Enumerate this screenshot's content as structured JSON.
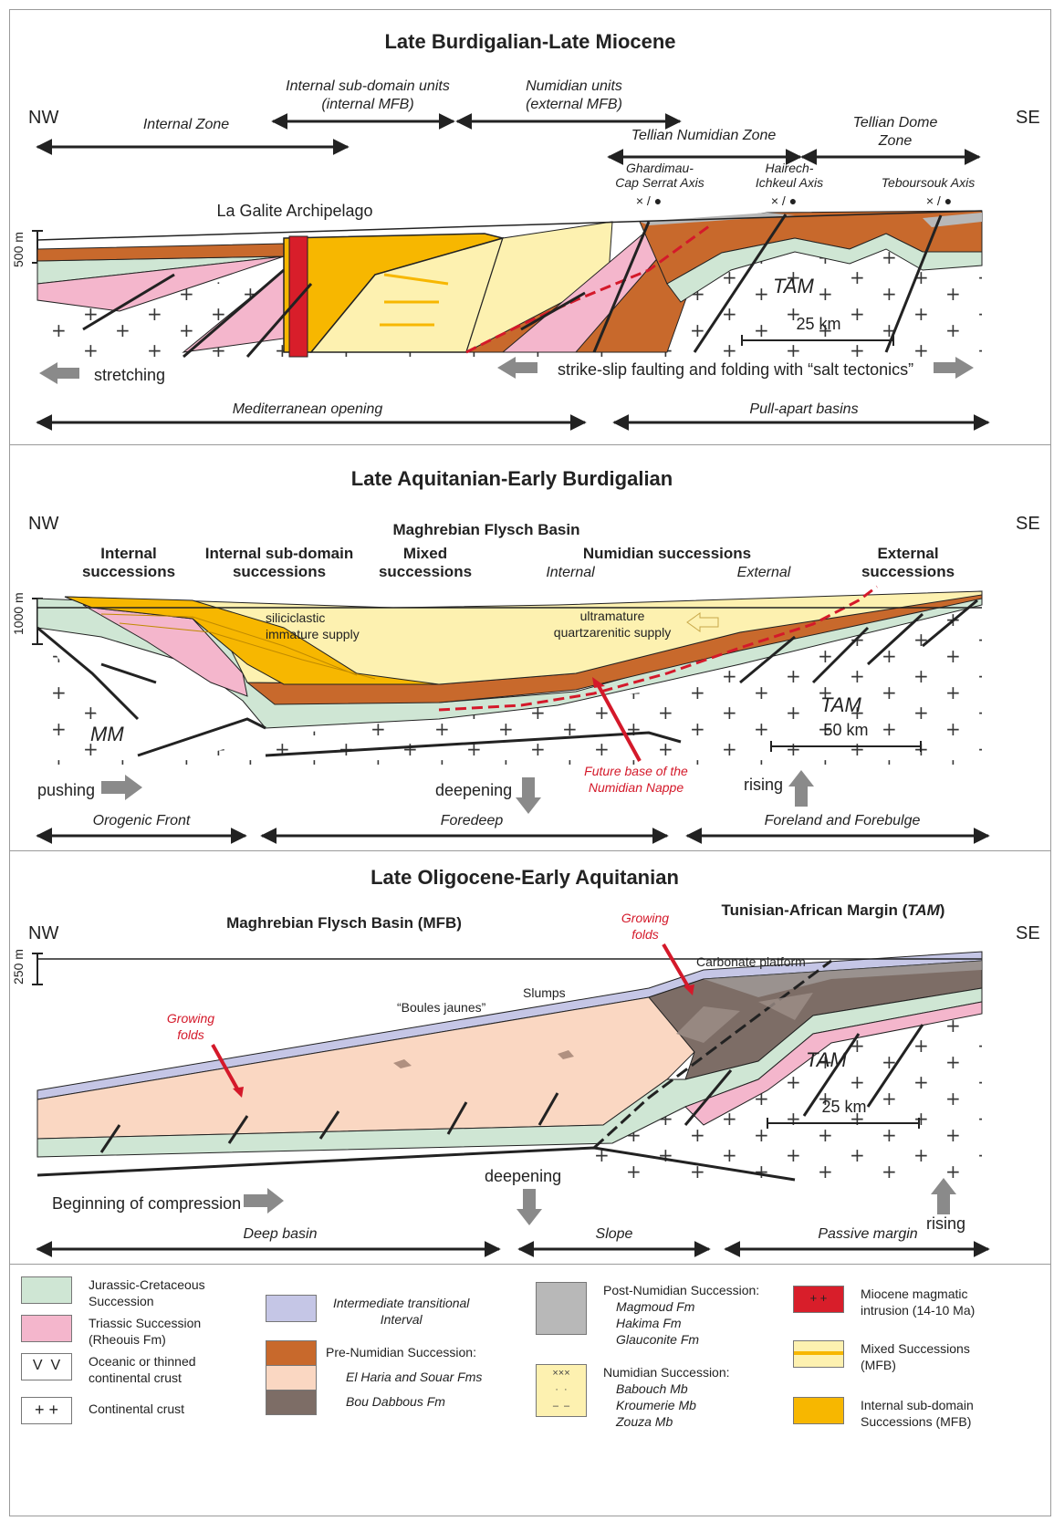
{
  "panel1": {
    "title": "Late Burdigalian-Late Miocene",
    "nw": "NW",
    "se": "SE",
    "internal_zone": "Internal Zone",
    "internal_sub_domain_1": "Internal sub-domain units",
    "internal_sub_domain_2": "(internal MFB)",
    "numidian_units_1": "Numidian units",
    "numidian_units_2": "(external MFB)",
    "tellian_numidian_zone": "Tellian Numidian Zone",
    "tellian_dome_1": "Tellian Dome",
    "tellian_dome_2": "Zone",
    "ghardimau_1": "Ghardimau-",
    "ghardimau_2": "Cap Serrat Axis",
    "hairech_1": "Hairech-",
    "hairech_2": "Ichkeul Axis",
    "teboursouk": "Teboursouk Axis",
    "axis_symbol": "× / ●",
    "la_galite": "La Galite Archipelago",
    "scale_height": "500 m",
    "tam": "TAM",
    "scale_length": "25 km",
    "stretching": "stretching",
    "strike_slip": "strike-slip faulting and folding with “salt tectonics”",
    "mediterranean_opening": "Mediterranean opening",
    "pull_apart": "Pull-apart basins"
  },
  "panel2": {
    "title": "Late Aquitanian-Early Burdigalian",
    "nw": "NW",
    "se": "SE",
    "mfb": "Maghrebian Flysch Basin",
    "internal_succ_1": "Internal",
    "internal_succ_2": "successions",
    "isd_succ_1": "Internal sub-domain",
    "isd_succ_2": "successions",
    "mixed_succ_1": "Mixed",
    "mixed_succ_2": "successions",
    "numidian_succ": "Numidian successions",
    "internal": "Internal",
    "external": "External",
    "external_succ_1": "External",
    "external_succ_2": "successions",
    "siliciclastic_1": "siliciclastic",
    "siliciclastic_2": "immature supply",
    "ultramature_1": "ultramature",
    "ultramature_2": "quartzarenitic supply",
    "scale_height": "1000 m",
    "mm": "MM",
    "tam": "TAM",
    "scale_length": "50 km",
    "future_base_1": "Future base of the",
    "future_base_2": "Numidian Nappe",
    "pushing": "pushing",
    "deepening": "deepening",
    "rising": "rising",
    "orogenic_front": "Orogenic Front",
    "foredeep": "Foredeep",
    "foreland": "Foreland and Forebulge"
  },
  "panel3": {
    "title": "Late Oligocene-Early Aquitanian",
    "nw": "NW",
    "se": "SE",
    "mfb": "Maghrebian Flysch Basin (MFB)",
    "tam_margin_prefix": "Tunisian-African Margin (",
    "tam_margin_abbr": "TAM",
    "tam_margin_suffix": ")",
    "growing_folds_1": "Growing",
    "growing_folds_2": "folds",
    "carbonate_platform": "Carbonate platform",
    "slumps": "Slumps",
    "boules_jaunes": "“Boules jaunes”",
    "scale_height": "250 m",
    "tam": "TAM",
    "scale_length": "25 km",
    "beginning_compression": "Beginning of compression",
    "deepening": "deepening",
    "rising": "rising",
    "deep_basin": "Deep basin",
    "slope": "Slope",
    "passive_margin": "Passive margin"
  },
  "legend": {
    "jurassic_1": "Jurassic-Cretaceous",
    "jurassic_2": "Succession",
    "triassic_1": "Triassic Succession",
    "triassic_2": "(Rheouis Fm)",
    "oceanic_1": "Oceanic or thinned",
    "oceanic_2": "continental crust",
    "continental": "Continental crust",
    "intermediate_1": "Intermediate transitional",
    "intermediate_2": "Interval",
    "pre_numidian": "Pre-Numidian Succession:",
    "el_haria": "El Haria and Souar Fms",
    "bou_dabbous": "Bou Dabbous Fm",
    "post_numidian": "Post-Numidian Succession:",
    "magmoud": "Magmoud Fm",
    "hakima": "Hakima Fm",
    "glauconite": "Glauconite Fm",
    "numidian": "Numidian Succession:",
    "babouch": "Babouch Mb",
    "kroumerie": "Kroumerie Mb",
    "zouza": "Zouza Mb",
    "miocene_1": "Miocene magmatic",
    "miocene_2": "intrusion (14-10 Ma)",
    "mixed_1": "Mixed Successions",
    "mixed_2": "(MFB)",
    "isd_1": "Internal sub-domain",
    "isd_2": "Successions (MFB)"
  },
  "colors": {
    "jurassic": "#cfe6d4",
    "triassic": "#f4b6cc",
    "pre_numidian": "#c8692c",
    "el_haria": "#fad7c2",
    "bou_dabbous": "#7d6d66",
    "intermediate": "#c5c6e6",
    "post_numidian": "#b8b8b8",
    "numidian": "#fdf1b0",
    "internal_sub_domain": "#f7b700",
    "miocene_intrusion": "#d81e2a",
    "red_text": "#d4192a"
  }
}
